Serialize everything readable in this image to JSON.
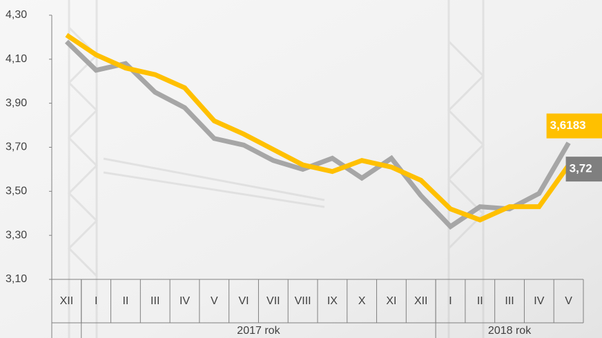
{
  "chart_data": {
    "type": "line",
    "categories": [
      "XII",
      "I",
      "II",
      "III",
      "IV",
      "V",
      "VI",
      "VII",
      "VIII",
      "IX",
      "X",
      "XI",
      "XII",
      "I",
      "II",
      "III",
      "IV",
      "V"
    ],
    "groups": [
      {
        "label": "2017 rok",
        "span": 12
      },
      {
        "label": "2018 rok",
        "span": 5
      }
    ],
    "series": [
      {
        "color": "#a6a6a6",
        "label_color": "#7f7f7f",
        "values": [
          4.18,
          4.05,
          4.08,
          3.95,
          3.88,
          3.74,
          3.71,
          3.64,
          3.6,
          3.65,
          3.56,
          3.65,
          3.48,
          3.34,
          3.43,
          3.42,
          3.49,
          3.72
        ],
        "value_labels": [
          null,
          null,
          null,
          null,
          null,
          null,
          null,
          null,
          null,
          null,
          null,
          null,
          null,
          null,
          null,
          null,
          null,
          "3,72"
        ]
      },
      {
        "color": "#ffc000",
        "label_color": "#ffc000",
        "values": [
          4.21,
          4.12,
          4.06,
          4.03,
          3.97,
          3.82,
          3.76,
          3.69,
          3.62,
          3.59,
          3.64,
          3.61,
          3.55,
          3.42,
          3.37,
          3.43,
          3.43,
          3.6183
        ],
        "value_labels": [
          null,
          null,
          null,
          null,
          null,
          null,
          null,
          null,
          null,
          null,
          null,
          null,
          null,
          null,
          null,
          null,
          null,
          "3,6183"
        ]
      }
    ],
    "ylim": [
      3.1,
      4.3
    ],
    "yticks": [
      {
        "value": 3.1,
        "label": "3,10"
      },
      {
        "value": 3.3,
        "label": "3,30"
      },
      {
        "value": 3.5,
        "label": "3,50"
      },
      {
        "value": 3.7,
        "label": "3,70"
      },
      {
        "value": 3.9,
        "label": "3,90"
      },
      {
        "value": 4.1,
        "label": "4,10"
      },
      {
        "value": 4.3,
        "label": "4,30"
      }
    ],
    "grid": false
  }
}
